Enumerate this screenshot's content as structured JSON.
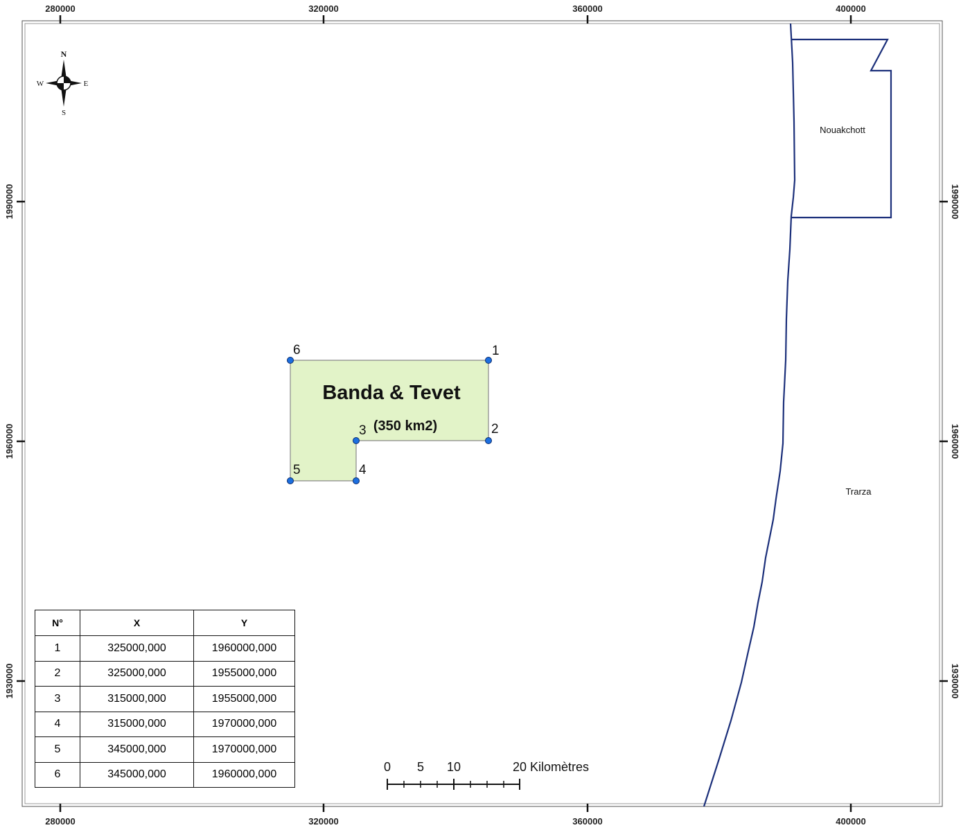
{
  "frame": {
    "top_x_ticks": [
      "280000",
      "320000",
      "360000",
      "400000"
    ],
    "bottom_x_ticks": [
      "280000",
      "320000",
      "360000",
      "400000"
    ],
    "left_y_ticks": [
      "1990000",
      "1960000",
      "1930000"
    ],
    "right_y_ticks": [
      "1990000",
      "1960000",
      "1930000"
    ]
  },
  "compass": {
    "north": "N",
    "south": "S",
    "east": "E",
    "west": "W"
  },
  "block": {
    "name": "Banda & Tevet",
    "area": "(350 km2)",
    "fill_color": "#e2f3c8",
    "vertex_color": "#1c6fe0",
    "vertex_labels": [
      "1",
      "2",
      "3",
      "4",
      "5",
      "6"
    ]
  },
  "places": {
    "capital": "Nouakchott",
    "region": "Trarza"
  },
  "boundary_color": "#1b2f7a",
  "scale_bar": {
    "labels": [
      "0",
      "5",
      "10",
      "20 Kilomètres"
    ]
  },
  "coordinates_table": {
    "headers": [
      "N°",
      "X",
      "Y"
    ],
    "rows": [
      [
        "1",
        "325000,000",
        "1960000,000"
      ],
      [
        "2",
        "325000,000",
        "1955000,000"
      ],
      [
        "3",
        "315000,000",
        "1955000,000"
      ],
      [
        "4",
        "315000,000",
        "1970000,000"
      ],
      [
        "5",
        "345000,000",
        "1970000,000"
      ],
      [
        "6",
        "345000,000",
        "1960000,000"
      ]
    ]
  }
}
